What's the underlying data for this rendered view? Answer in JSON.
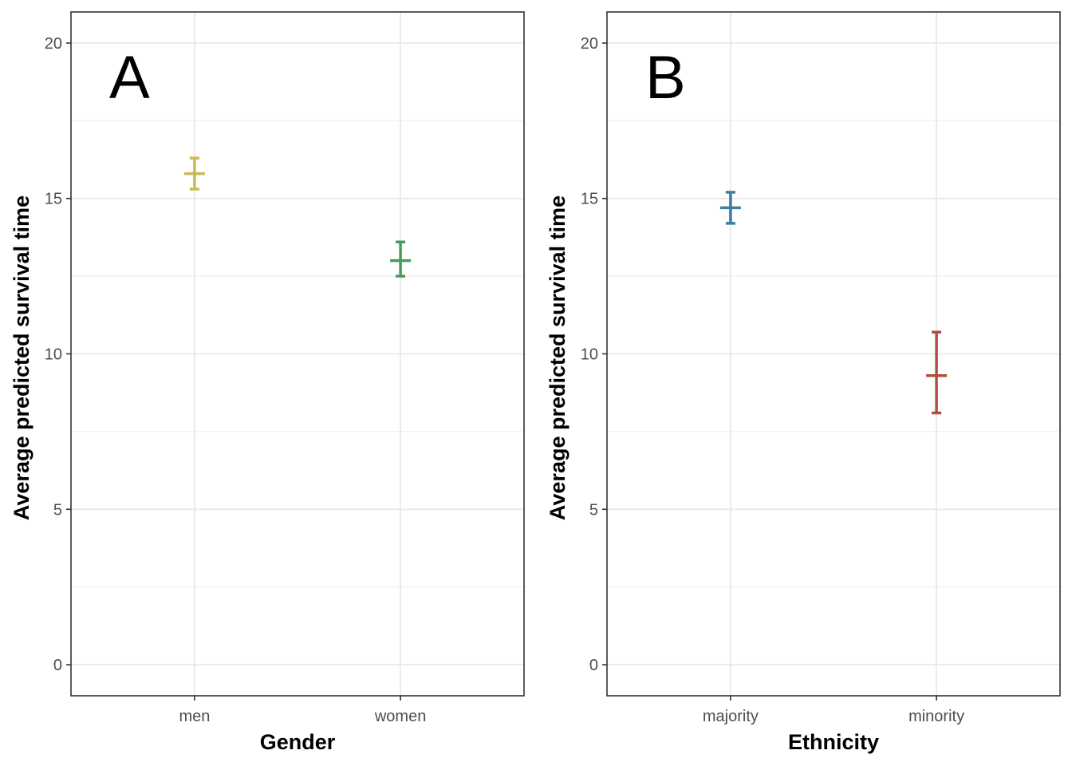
{
  "chart_data": [
    {
      "type": "errorbar",
      "panel_label": "A",
      "xlabel": "Gender",
      "ylabel": "Average predicted survival time",
      "categories": [
        "men",
        "women"
      ],
      "estimates": [
        15.8,
        13.0
      ],
      "lower": [
        15.3,
        12.5
      ],
      "upper": [
        16.3,
        13.6
      ],
      "colors": [
        "#C8B95A",
        "#4A9A5E"
      ],
      "ylim": [
        -1,
        21
      ],
      "yticks": [
        0,
        5,
        10,
        15,
        20
      ],
      "grid": true
    },
    {
      "type": "errorbar",
      "panel_label": "B",
      "xlabel": "Ethnicity",
      "ylabel": "Average predicted survival time",
      "categories": [
        "majority",
        "minority"
      ],
      "estimates": [
        14.7,
        9.3
      ],
      "lower": [
        14.2,
        8.1
      ],
      "upper": [
        15.2,
        10.7
      ],
      "colors": [
        "#3A7F9B",
        "#B04F3F"
      ],
      "ylim": [
        -1,
        21
      ],
      "yticks": [
        0,
        5,
        10,
        15,
        20
      ],
      "grid": true
    }
  ]
}
